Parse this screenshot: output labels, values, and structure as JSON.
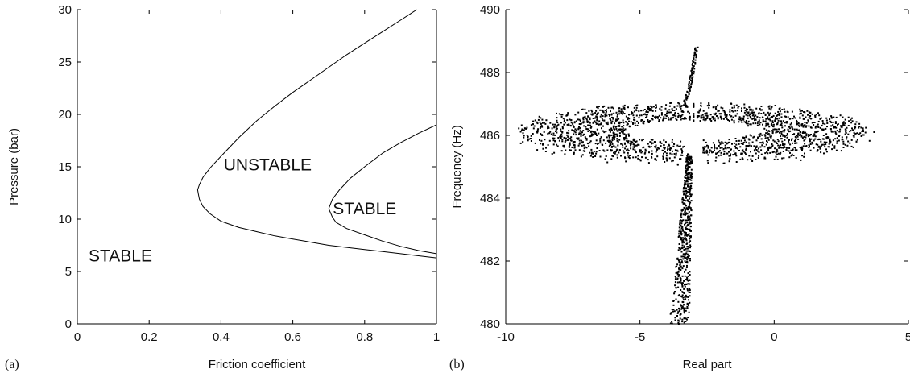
{
  "chart_data": [
    {
      "type": "line",
      "panel_label": "(a)",
      "xlabel": "Friction coefficient",
      "ylabel": "Pressure (bar)",
      "xlim": [
        0,
        1
      ],
      "ylim": [
        0,
        30
      ],
      "xticks": [
        0,
        0.2,
        0.4,
        0.6,
        0.8,
        1
      ],
      "xtick_labels": [
        "0",
        "0.2",
        "0.4",
        "0.6",
        "0.8",
        "1"
      ],
      "yticks": [
        0,
        5,
        10,
        15,
        20,
        25,
        30
      ],
      "ytick_labels": [
        "0",
        "5",
        "10",
        "15",
        "20",
        "25",
        "30"
      ],
      "grid": false,
      "annotations": [
        {
          "text": "UNSTABLE",
          "x": 0.53,
          "y": 15.2
        },
        {
          "text": "STABLE",
          "x": 0.8,
          "y": 11.0
        },
        {
          "text": "STABLE",
          "x": 0.12,
          "y": 6.5
        }
      ],
      "series": [
        {
          "x": [
            0.945,
            0.9,
            0.85,
            0.8,
            0.75,
            0.7,
            0.65,
            0.6,
            0.55,
            0.5,
            0.45,
            0.4,
            0.37,
            0.35,
            0.34,
            0.335,
            0.337,
            0.34,
            0.35,
            0.37,
            0.4,
            0.45,
            0.5,
            0.55,
            0.6,
            0.65,
            0.7,
            0.75,
            0.8,
            0.85,
            0.9,
            0.95,
            1.0
          ],
          "y": [
            30.0,
            29.0,
            27.9,
            26.8,
            25.7,
            24.5,
            23.3,
            22.1,
            20.8,
            19.4,
            17.8,
            16.0,
            14.9,
            14.0,
            13.3,
            12.8,
            12.4,
            11.9,
            11.2,
            10.5,
            9.8,
            9.2,
            8.8,
            8.4,
            8.1,
            7.8,
            7.5,
            7.3,
            7.1,
            6.9,
            6.7,
            6.5,
            6.3
          ]
        },
        {
          "x": [
            1.0,
            0.95,
            0.9,
            0.85,
            0.8,
            0.76,
            0.73,
            0.71,
            0.7,
            0.71,
            0.72,
            0.75,
            0.8,
            0.85,
            0.9,
            0.95,
            1.0
          ],
          "y": [
            19.0,
            18.2,
            17.3,
            16.3,
            15.0,
            13.9,
            12.8,
            11.9,
            11.0,
            10.2,
            9.7,
            9.1,
            8.5,
            7.9,
            7.4,
            7.0,
            6.7
          ]
        }
      ]
    },
    {
      "type": "scatter",
      "panel_label": "(b)",
      "xlabel": "Real part",
      "ylabel": "Frequency (Hz)",
      "xlim": [
        -10,
        5
      ],
      "ylim": [
        480,
        490
      ],
      "xticks": [
        -10,
        -5,
        0,
        5
      ],
      "xtick_labels": [
        "-10",
        "-5",
        "0",
        "5"
      ],
      "yticks": [
        480,
        482,
        484,
        486,
        488,
        490
      ],
      "ytick_labels": [
        "480",
        "482",
        "484",
        "486",
        "488",
        "490"
      ],
      "grid": false,
      "series": [
        {
          "description_shape": "ring",
          "center": [
            -3.0,
            486.1
          ],
          "outer_rx": [
            6.8,
            6.5
          ],
          "inner_rx": [
            2.8,
            2.5
          ],
          "outer_ry": [
            0.95,
            0.85
          ],
          "inner_ry": [
            0.45,
            0.35
          ]
        },
        {
          "description_shape": "vertical_band",
          "x_bottom": [
            -3.9,
            -3.15
          ],
          "x_top": [
            -3.25,
            -3.05
          ],
          "y_range": [
            480,
            485.4
          ]
        },
        {
          "description_shape": "upper_tail",
          "x_start": -3.5,
          "x_end": -2.9,
          "y_range": [
            486.9,
            488.8
          ]
        }
      ]
    }
  ]
}
